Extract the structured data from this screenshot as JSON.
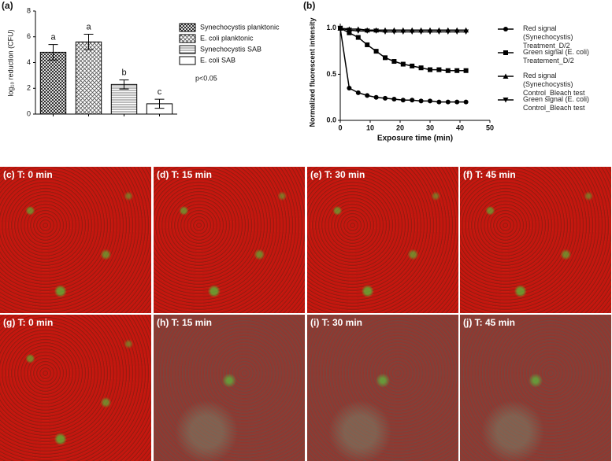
{
  "chart_data": [
    {
      "type": "bar",
      "panel": "(a)",
      "ylabel": "log₁₀ reduction (CFU)",
      "categories": [
        "Synechocystis planktonic",
        "E. coli planktonic",
        "Synechocystis SAB",
        "E. coli SAB"
      ],
      "values": [
        4.8,
        5.6,
        2.3,
        0.8
      ],
      "errors": [
        0.6,
        0.6,
        0.35,
        0.35
      ],
      "bar_letters": [
        "a",
        "a",
        "b",
        "c"
      ],
      "patterns": [
        "checker",
        "crosshatch",
        "hlines",
        "none"
      ],
      "annotation": "p<0.05",
      "ylim": [
        0,
        8
      ],
      "yticks": [
        0,
        2,
        4,
        6,
        8
      ]
    },
    {
      "type": "line",
      "panel": "(b)",
      "xlabel": "Exposure time (min)",
      "ylabel": "Normalized fluorescent intensity",
      "x": [
        0,
        3,
        6,
        9,
        12,
        15,
        18,
        21,
        24,
        27,
        30,
        33,
        36,
        39,
        42
      ],
      "series": [
        {
          "name": "Red signal (Synechocystis) Treatment_D/2",
          "marker": "circle",
          "values": [
            1.0,
            0.35,
            0.3,
            0.27,
            0.25,
            0.24,
            0.23,
            0.22,
            0.22,
            0.21,
            0.21,
            0.2,
            0.2,
            0.2,
            0.2
          ]
        },
        {
          "name": "Green signal (E. coli) Treatement_D/2",
          "marker": "square",
          "values": [
            1.0,
            0.95,
            0.9,
            0.82,
            0.75,
            0.68,
            0.64,
            0.61,
            0.59,
            0.57,
            0.55,
            0.55,
            0.54,
            0.54,
            0.54
          ]
        },
        {
          "name": "Red signal (Synechocystis) Control_Bleach test",
          "marker": "triangle-up",
          "values": [
            1.0,
            0.99,
            0.99,
            0.98,
            0.98,
            0.98,
            0.98,
            0.98,
            0.98,
            0.98,
            0.98,
            0.98,
            0.98,
            0.98,
            0.98
          ]
        },
        {
          "name": "Green signal (E. coli) Control_Bleach test",
          "marker": "triangle-down",
          "values": [
            1.0,
            0.98,
            0.97,
            0.97,
            0.97,
            0.96,
            0.96,
            0.96,
            0.96,
            0.96,
            0.96,
            0.96,
            0.96,
            0.96,
            0.96
          ]
        }
      ],
      "xlim": [
        0,
        50
      ],
      "xticks": [
        0,
        10,
        20,
        30,
        40,
        50
      ],
      "ylim": [
        0,
        1.05
      ],
      "yticks": [
        {
          "value": 0,
          "label": "0.0"
        },
        {
          "value": 0.5,
          "label": "0.5"
        },
        {
          "value": 1,
          "label": "1.0"
        }
      ]
    }
  ],
  "images": [
    {
      "label": "(c) T: 0 min"
    },
    {
      "label": "(d) T: 15 min"
    },
    {
      "label": "(e) T: 30 min"
    },
    {
      "label": "(f) T: 45 min"
    },
    {
      "label": "(g) T: 0 min"
    },
    {
      "label": "(h) T: 15 min"
    },
    {
      "label": "(i) T: 30 min"
    },
    {
      "label": "(j) T: 45 min"
    }
  ]
}
